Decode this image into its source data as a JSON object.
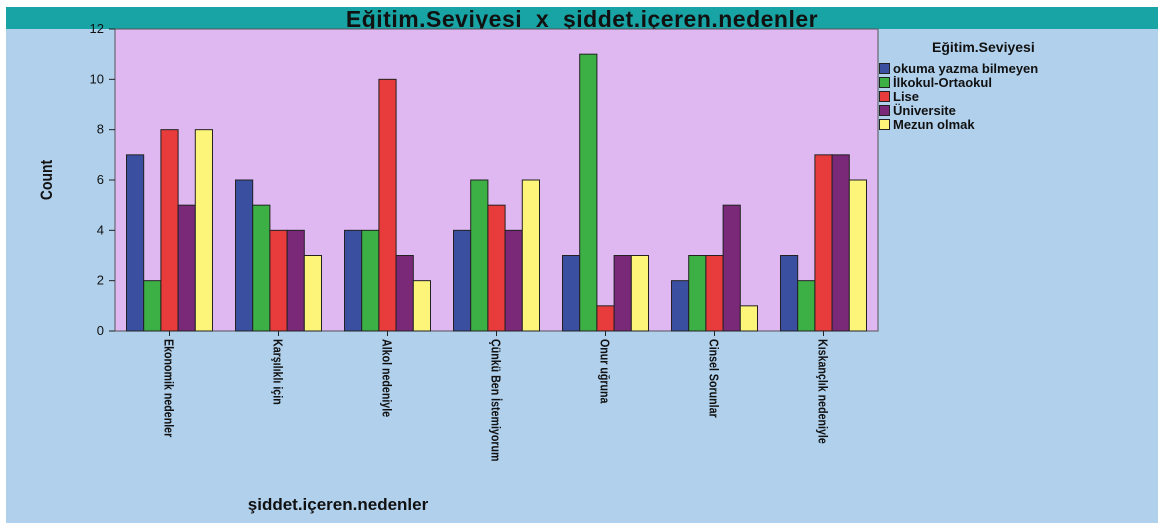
{
  "chart_data": {
    "type": "bar",
    "title": "Eğitim.Seviyesi  x  şiddet.içeren.nedenler",
    "xlabel": "şiddet.içeren.nedenler",
    "ylabel": "Count",
    "ylim": [
      0,
      12
    ],
    "yticks": [
      0,
      2,
      4,
      6,
      8,
      10,
      12
    ],
    "grid": false,
    "legend_title": "Eğitim.Seviyesi",
    "legend_position": "right",
    "categories": [
      "Ekonomik nedenler",
      "Karşılıklı için",
      "Alkol nedeniyle",
      "Çünkü Ben İstemiyorum",
      "Onur uğruna",
      "Cinsel Sorunlar",
      "Kıskançlık nedeniyle"
    ],
    "series": [
      {
        "name": "okuma yazma bilmeyen",
        "color": "#3a4fa0",
        "values": [
          7,
          6,
          4,
          4,
          3,
          2,
          3
        ]
      },
      {
        "name": "İlkokul-Ortaokul",
        "color": "#3cb045",
        "values": [
          2,
          5,
          4,
          6,
          11,
          3,
          2
        ]
      },
      {
        "name": "Lise",
        "color": "#e83b3b",
        "values": [
          8,
          4,
          10,
          5,
          1,
          3,
          7
        ]
      },
      {
        "name": "Üniversite",
        "color": "#7a2878",
        "values": [
          5,
          4,
          3,
          4,
          3,
          5,
          7
        ]
      },
      {
        "name": "Mezun olmak",
        "color": "#fdf47a",
        "values": [
          8,
          3,
          2,
          6,
          3,
          1,
          6
        ]
      }
    ],
    "plot_background": "#dfb8f2",
    "panel_background": "#b0d0ec",
    "title_background": "#18a4a4"
  }
}
